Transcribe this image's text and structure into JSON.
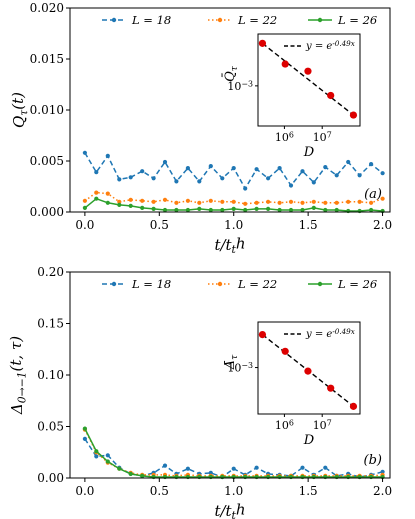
{
  "chart_data": [
    {
      "type": "line",
      "panel_label": "(a)",
      "xlabel": "t/t_th",
      "ylabel": "Q_τ(t)",
      "xlim": [
        -0.1,
        2.05
      ],
      "ylim": [
        0,
        0.02
      ],
      "xticks": [
        "0.0",
        "0.5",
        "1.0",
        "1.5",
        "2.0"
      ],
      "yticks": [
        "0.000",
        "0.005",
        "0.010",
        "0.015",
        "0.020"
      ],
      "xtick_values": [
        0.0,
        0.5,
        1.0,
        1.5,
        2.0
      ],
      "ytick_values": [
        0.0,
        0.005,
        0.01,
        0.015,
        0.02
      ],
      "legend_position": "top",
      "series": [
        {
          "name": "L = 18",
          "color": "#1f77b4",
          "style": "dashed",
          "marker": "circle",
          "x": [
            0.0,
            0.077,
            0.154,
            0.231,
            0.308,
            0.385,
            0.462,
            0.538,
            0.615,
            0.692,
            0.769,
            0.846,
            0.923,
            1.0,
            1.077,
            1.154,
            1.231,
            1.308,
            1.385,
            1.462,
            1.538,
            1.615,
            1.692,
            1.769,
            1.846,
            1.923,
            2.0
          ],
          "y": [
            0.0058,
            0.0039,
            0.0055,
            0.0032,
            0.0034,
            0.004,
            0.0033,
            0.0049,
            0.003,
            0.0043,
            0.003,
            0.0045,
            0.0033,
            0.0043,
            0.0023,
            0.0042,
            0.0033,
            0.0043,
            0.0026,
            0.004,
            0.0029,
            0.0044,
            0.0036,
            0.0049,
            0.0036,
            0.0047,
            0.0038
          ]
        },
        {
          "name": "L = 22",
          "color": "#ff7f0e",
          "style": "dotted",
          "marker": "circle",
          "x": [
            0.0,
            0.077,
            0.154,
            0.231,
            0.308,
            0.385,
            0.462,
            0.538,
            0.615,
            0.692,
            0.769,
            0.846,
            0.923,
            1.0,
            1.077,
            1.154,
            1.231,
            1.308,
            1.385,
            1.462,
            1.538,
            1.615,
            1.692,
            1.769,
            1.846,
            1.923,
            2.0
          ],
          "y": [
            0.0011,
            0.0019,
            0.0018,
            0.001,
            0.0012,
            0.0011,
            0.001,
            0.0012,
            0.0009,
            0.0011,
            0.0009,
            0.0011,
            0.001,
            0.001,
            0.0008,
            0.0009,
            0.001,
            0.0009,
            0.001,
            0.0009,
            0.001,
            0.0009,
            0.0009,
            0.001,
            0.001,
            0.0009,
            0.0013
          ]
        },
        {
          "name": "L = 26",
          "color": "#2ca02c",
          "style": "solid",
          "marker": "circle",
          "x": [
            0.0,
            0.077,
            0.154,
            0.231,
            0.308,
            0.385,
            0.462,
            0.538,
            0.615,
            0.692,
            0.769,
            0.846,
            0.923,
            1.0,
            1.077,
            1.154,
            1.231,
            1.308,
            1.385,
            1.462,
            1.538,
            1.615,
            1.692,
            1.769,
            1.846,
            1.923,
            2.0
          ],
          "y": [
            0.0004,
            0.0013,
            0.0009,
            0.0007,
            0.0006,
            0.0004,
            0.0003,
            0.0002,
            0.0002,
            0.0002,
            0.0003,
            0.0002,
            0.0002,
            0.0003,
            0.0002,
            0.0003,
            0.0003,
            0.0002,
            0.0002,
            0.0002,
            0.0004,
            0.0002,
            0.0002,
            0.0001,
            0.0001,
            0.0002,
            0.0001
          ]
        }
      ],
      "inset": {
        "type": "scatter",
        "xlabel": "D",
        "ylabel": "Q̄_τ",
        "xscale": "log",
        "yscale": "log",
        "xlim": [
          200000,
          100000000
        ],
        "ylim": [
          0.0002,
          0.008
        ],
        "xticks": [
          "10^6",
          "10^7"
        ],
        "xtick_values": [
          1000000,
          10000000
        ],
        "yticks": [
          "10^-3"
        ],
        "ytick_values": [
          0.001
        ],
        "points_color": "#dd0000",
        "fit_label": "y = e^{-0.49x}",
        "x": [
          262144,
          1048576,
          4194304,
          16777216,
          67108864
        ],
        "y": [
          0.0055,
          0.0024,
          0.0018,
          0.00068,
          0.00031
        ]
      }
    },
    {
      "type": "line",
      "panel_label": "(b)",
      "xlabel": "t/t_th",
      "ylabel": "Δ_{0→−1}(t, τ)",
      "xlim": [
        -0.1,
        2.05
      ],
      "ylim": [
        0,
        0.2
      ],
      "xticks": [
        "0.0",
        "0.5",
        "1.0",
        "1.5",
        "2.0"
      ],
      "yticks": [
        "0.00",
        "0.05",
        "0.10",
        "0.15",
        "0.20"
      ],
      "xtick_values": [
        0.0,
        0.5,
        1.0,
        1.5,
        2.0
      ],
      "ytick_values": [
        0.0,
        0.05,
        0.1,
        0.15,
        0.2
      ],
      "legend_position": "top",
      "series": [
        {
          "name": "L = 18",
          "color": "#1f77b4",
          "style": "dashed",
          "marker": "circle",
          "x": [
            0.0,
            0.077,
            0.154,
            0.231,
            0.308,
            0.385,
            0.462,
            0.538,
            0.615,
            0.692,
            0.769,
            0.846,
            0.923,
            1.0,
            1.077,
            1.154,
            1.231,
            1.308,
            1.385,
            1.462,
            1.538,
            1.615,
            1.692,
            1.769,
            1.846,
            1.923,
            2.0
          ],
          "y": [
            0.038,
            0.021,
            0.022,
            0.01,
            0.004,
            0.002,
            0.005,
            0.012,
            0.004,
            0.009,
            0.004,
            0.005,
            0.001,
            0.009,
            0.003,
            0.01,
            0.004,
            0.003,
            0.002,
            0.01,
            0.003,
            0.01,
            0.002,
            0.004,
            0.001,
            0.003,
            0.006
          ]
        },
        {
          "name": "L = 22",
          "color": "#ff7f0e",
          "style": "dotted",
          "marker": "circle",
          "x": [
            0.0,
            0.077,
            0.154,
            0.231,
            0.308,
            0.385,
            0.462,
            0.538,
            0.615,
            0.692,
            0.769,
            0.846,
            0.923,
            1.0,
            1.077,
            1.154,
            1.231,
            1.308,
            1.385,
            1.462,
            1.538,
            1.615,
            1.692,
            1.769,
            1.846,
            1.923,
            2.0
          ],
          "y": [
            0.047,
            0.025,
            0.015,
            0.009,
            0.005,
            0.003,
            0.003,
            0.003,
            0.002,
            0.003,
            0.002,
            0.002,
            0.002,
            0.002,
            0.002,
            0.002,
            0.002,
            0.002,
            0.002,
            0.002,
            0.002,
            0.002,
            0.002,
            0.002,
            0.002,
            0.002,
            0.003
          ]
        },
        {
          "name": "L = 26",
          "color": "#2ca02c",
          "style": "solid",
          "marker": "circle",
          "x": [
            0.0,
            0.077,
            0.154,
            0.231,
            0.308,
            0.385,
            0.462,
            0.538,
            0.615,
            0.692,
            0.769,
            0.846,
            0.923,
            1.0,
            1.077,
            1.154,
            1.231,
            1.308,
            1.385,
            1.462,
            1.538,
            1.615,
            1.692,
            1.769,
            1.846,
            1.923,
            2.0
          ],
          "y": [
            0.048,
            0.026,
            0.016,
            0.009,
            0.004,
            0.002,
            0.001,
            0.001,
            0.001,
            0.001,
            0.001,
            0.001,
            0.001,
            0.001,
            0.001,
            0.001,
            0.001,
            0.001,
            0.001,
            0.001,
            0.001,
            0.001,
            0.001,
            0.001,
            0.001,
            0.001,
            0.001
          ]
        }
      ],
      "inset": {
        "type": "scatter",
        "xlabel": "D",
        "ylabel": "Δ̄_τ",
        "xscale": "log",
        "yscale": "log",
        "xlim": [
          200000,
          100000000
        ],
        "ylim": [
          0.00012,
          0.008
        ],
        "xticks": [
          "10^6",
          "10^7"
        ],
        "xtick_values": [
          1000000,
          10000000
        ],
        "yticks": [
          "10^-3"
        ],
        "ytick_values": [
          0.001
        ],
        "points_color": "#dd0000",
        "fit_label": "y = e^{-0.49x}",
        "x": [
          262144,
          1048576,
          4194304,
          16777216,
          67108864
        ],
        "y": [
          0.0045,
          0.0021,
          0.00085,
          0.00039,
          0.00017
        ]
      }
    }
  ]
}
